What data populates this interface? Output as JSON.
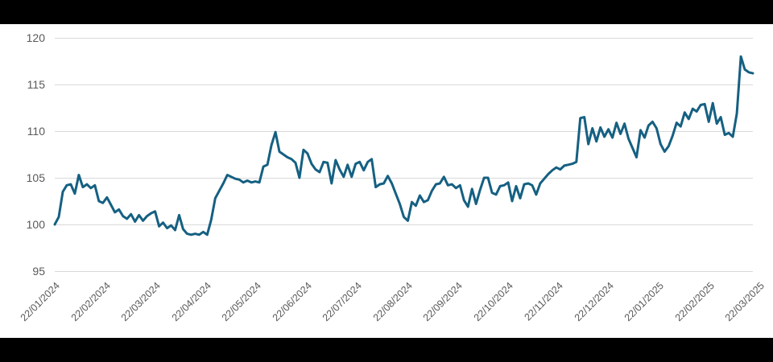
{
  "colors": {
    "line": "#156082",
    "gridline": "#d9d9d9",
    "tick_label": "#595959",
    "plot_background": "#ffffff",
    "letterbox_bar": "#000000"
  },
  "chart_data": {
    "type": "line",
    "title": "",
    "xlabel": "",
    "ylabel": "",
    "legend": "none",
    "grid": "horizontal",
    "ylim": [
      95,
      120
    ],
    "y_ticks": [
      95,
      100,
      105,
      110,
      115,
      120
    ],
    "x_tick_labels": [
      "22/01/2024",
      "22/02/2024",
      "22/03/2024",
      "22/04/2024",
      "22/05/2024",
      "22/06/2024",
      "22/07/2024",
      "22/08/2024",
      "22/09/2024",
      "22/10/2024",
      "22/11/2024",
      "22/12/2024",
      "22/01/2025",
      "22/02/2025",
      "22/03/2025"
    ],
    "x_range": [
      "22/01/2024",
      "22/03/2025"
    ],
    "series": [
      {
        "color": "#156082",
        "values": [
          100.0,
          100.8,
          103.5,
          104.2,
          104.3,
          103.3,
          105.3,
          104.0,
          104.3,
          103.9,
          104.2,
          102.5,
          102.3,
          102.9,
          102.1,
          101.3,
          101.6,
          100.9,
          100.6,
          101.1,
          100.3,
          101.0,
          100.4,
          100.9,
          101.2,
          101.4,
          99.8,
          100.2,
          99.6,
          99.9,
          99.4,
          101.0,
          99.5,
          99.0,
          98.9,
          99.0,
          98.9,
          99.2,
          98.9,
          100.5,
          102.8,
          103.6,
          104.4,
          105.3,
          105.1,
          104.9,
          104.8,
          104.5,
          104.7,
          104.5,
          104.6,
          104.5,
          106.2,
          106.4,
          108.5,
          109.9,
          107.8,
          107.5,
          107.2,
          107.0,
          106.6,
          105.0,
          108.0,
          107.6,
          106.5,
          105.9,
          105.6,
          106.7,
          106.6,
          104.4,
          106.9,
          105.9,
          105.1,
          106.4,
          105.1,
          106.5,
          106.7,
          105.8,
          106.7,
          107.0,
          104.0,
          104.3,
          104.4,
          105.2,
          104.4,
          103.3,
          102.2,
          100.8,
          100.4,
          102.4,
          102.0,
          103.1,
          102.4,
          102.6,
          103.6,
          104.3,
          104.4,
          105.1,
          104.2,
          104.3,
          103.9,
          104.2,
          102.6,
          101.9,
          103.8,
          102.2,
          103.7,
          105.0,
          105.0,
          103.4,
          103.2,
          104.1,
          104.2,
          104.5,
          102.5,
          104.1,
          102.8,
          104.3,
          104.4,
          104.2,
          103.2,
          104.4,
          104.9,
          105.4,
          105.8,
          106.1,
          105.9,
          106.3,
          106.4,
          106.5,
          106.7,
          111.4,
          111.5,
          108.6,
          110.3,
          108.9,
          110.4,
          109.4,
          110.2,
          109.3,
          110.9,
          109.7,
          110.8,
          109.2,
          108.2,
          107.2,
          110.1,
          109.3,
          110.6,
          111.0,
          110.3,
          108.6,
          107.8,
          108.4,
          109.5,
          110.9,
          110.5,
          112.0,
          111.3,
          112.4,
          112.1,
          112.8,
          112.9,
          111.0,
          113.0,
          110.8,
          111.5,
          109.6,
          109.8,
          109.4,
          111.9,
          118.0,
          116.6,
          116.3,
          116.2
        ]
      }
    ]
  }
}
